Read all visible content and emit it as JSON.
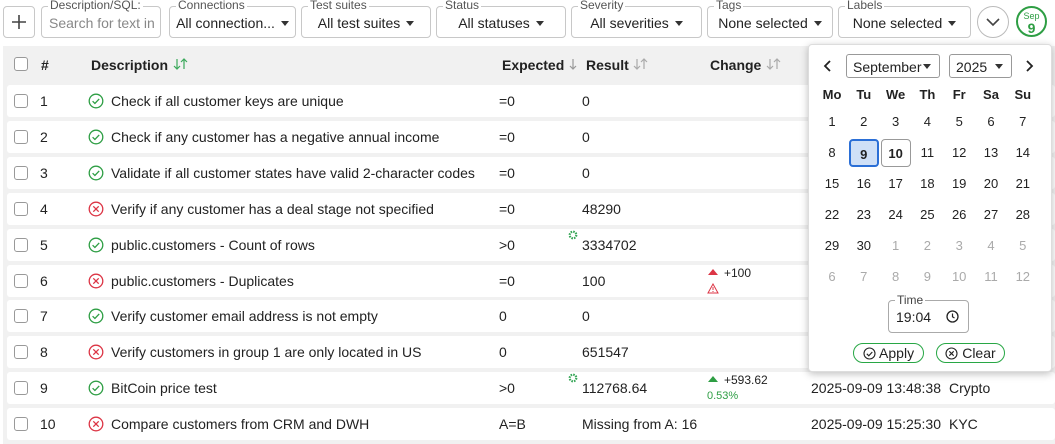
{
  "filters": [
    {
      "label": "Description/SQL:",
      "placeholder": "Search for text in"
    },
    {
      "label": "Connections",
      "value": "All connection..."
    },
    {
      "label": "Test suites",
      "value": "All test suites"
    },
    {
      "label": "Status",
      "value": "All statuses"
    },
    {
      "label": "Severity",
      "value": "All severities"
    },
    {
      "label": "Tags",
      "value": "None selected"
    },
    {
      "label": "Labels",
      "value": "None selected"
    }
  ],
  "date_badge": {
    "month": "Sep",
    "day": "9"
  },
  "table": {
    "columns": {
      "index": "#",
      "description": "Description",
      "expected": "Expected",
      "result": "Result",
      "change": "Change"
    },
    "rows": [
      {
        "index": "1",
        "status": "passed",
        "description": "Check if all customer keys are unique",
        "expected": "=0",
        "result": "0"
      },
      {
        "index": "2",
        "status": "passed",
        "description": "Check if any customer has a negative annual income",
        "expected": "=0",
        "result": "0"
      },
      {
        "index": "3",
        "status": "passed",
        "description": "Validate if all customer states have valid 2-character codes",
        "expected": "=0",
        "result": "0"
      },
      {
        "index": "4",
        "status": "failed",
        "description": "Verify if any customer has a deal stage not specified",
        "expected": "=0",
        "result": "48290"
      },
      {
        "index": "5",
        "status": "passed",
        "description": "public.customers - Count of rows",
        "expected": ">0",
        "result": "3334702",
        "gear": true
      },
      {
        "index": "6",
        "status": "failed",
        "description": "public.customers - Duplicates",
        "expected": "=0",
        "result": "100",
        "change": {
          "value": "+100",
          "tone": "bad",
          "warning": true
        }
      },
      {
        "index": "7",
        "status": "passed",
        "description": "Verify customer email address is not empty",
        "expected": "0",
        "result": "0"
      },
      {
        "index": "8",
        "status": "failed",
        "description": "Verify customers in group 1 are only located in US",
        "expected": "0",
        "result": "651547"
      },
      {
        "index": "9",
        "status": "passed",
        "description": "BitCoin price test",
        "expected": ">0",
        "result": "112768.64",
        "gear": true,
        "change": {
          "value": "+593.62",
          "percent": "0.53%",
          "tone": "good"
        },
        "updated": "2025-09-09 13:48:38",
        "label": "Crypto"
      },
      {
        "index": "10",
        "status": "failed",
        "description": "Compare customers from CRM and DWH",
        "expected": "A=B",
        "result": "Missing from A: 16",
        "updated": "2025-09-09 15:25:30",
        "label": "KYC"
      }
    ]
  },
  "calendar": {
    "month": "September",
    "year": "2025",
    "weekdays": [
      "Mo",
      "Tu",
      "We",
      "Th",
      "Fr",
      "Sa",
      "Su"
    ],
    "days": [
      "1",
      "2",
      "3",
      "4",
      "5",
      "6",
      "7",
      "8",
      "9",
      "10",
      "11",
      "12",
      "13",
      "14",
      "15",
      "16",
      "17",
      "18",
      "19",
      "20",
      "21",
      "22",
      "23",
      "24",
      "25",
      "26",
      "27",
      "28",
      "29",
      "30"
    ],
    "next_days": [
      "1",
      "2",
      "3",
      "4",
      "5",
      "6",
      "7",
      "8",
      "9",
      "10",
      "11",
      "12"
    ],
    "selected_day": "9",
    "today": "10",
    "time_label": "Time",
    "time": "19:04",
    "apply": "Apply",
    "clear": "Clear"
  }
}
